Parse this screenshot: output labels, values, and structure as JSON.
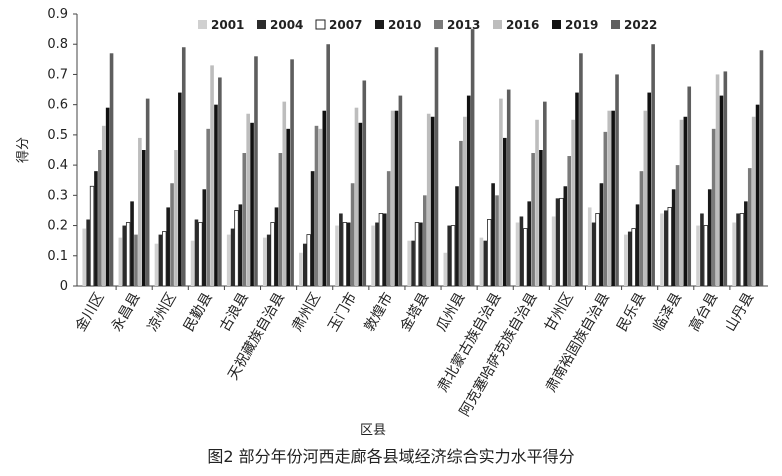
{
  "chart_data": {
    "type": "bar",
    "caption": "图2 部分年份河西走廊各县域经济综合实力水平得分",
    "xlabel": "区县",
    "ylabel": "得分",
    "ylim": [
      0,
      0.9
    ],
    "yticks": [
      "0",
      "0.1",
      "0.2",
      "0.3",
      "0.4",
      "0.5",
      "0.6",
      "0.7",
      "0.8",
      "0.9"
    ],
    "grid": false,
    "legend_position": "top",
    "categories": [
      "金川区",
      "永昌县",
      "凉州区",
      "民勤县",
      "古浪县",
      "天祝藏族自治县",
      "肃州区",
      "玉门市",
      "敦煌市",
      "金塔县",
      "瓜州县",
      "肃北蒙古族自治县",
      "阿克塞哈萨克族自治县",
      "甘州区",
      "肃南裕固族自治县",
      "民乐县",
      "临泽县",
      "高台县",
      "山丹县"
    ],
    "series": [
      {
        "name": "2001",
        "color": "#d0d0d0",
        "stroke": "none",
        "values": [
          0.19,
          0.16,
          0.14,
          0.15,
          0.17,
          0.16,
          0.11,
          0.2,
          0.2,
          0.15,
          0.11,
          0.16,
          0.21,
          0.23,
          0.26,
          0.17,
          0.24,
          0.2,
          0.21
        ]
      },
      {
        "name": "2004",
        "color": "#2b2b2b",
        "stroke": "none",
        "values": [
          0.22,
          0.2,
          0.17,
          0.22,
          0.19,
          0.17,
          0.14,
          0.24,
          0.21,
          0.15,
          0.2,
          0.15,
          0.23,
          0.29,
          0.21,
          0.18,
          0.25,
          0.24,
          0.24
        ]
      },
      {
        "name": "2007",
        "color": "#ffffff",
        "stroke": "#222222",
        "values": [
          0.33,
          0.21,
          0.18,
          0.21,
          0.25,
          0.21,
          0.17,
          0.21,
          0.24,
          0.21,
          0.2,
          0.22,
          0.19,
          0.29,
          0.24,
          0.19,
          0.26,
          0.2,
          0.24
        ]
      },
      {
        "name": "2010",
        "color": "#1a1a1a",
        "stroke": "none",
        "values": [
          0.38,
          0.28,
          0.26,
          0.32,
          0.27,
          0.26,
          0.38,
          0.21,
          0.24,
          0.21,
          0.33,
          0.34,
          0.28,
          0.33,
          0.34,
          0.27,
          0.32,
          0.32,
          0.28
        ]
      },
      {
        "name": "2013",
        "color": "#7a7a7a",
        "stroke": "none",
        "values": [
          0.45,
          0.17,
          0.34,
          0.52,
          0.44,
          0.44,
          0.53,
          0.34,
          0.38,
          0.3,
          0.48,
          0.3,
          0.44,
          0.43,
          0.51,
          0.38,
          0.4,
          0.52,
          0.39
        ]
      },
      {
        "name": "2016",
        "color": "#bdbdbd",
        "stroke": "none",
        "values": [
          0.53,
          0.49,
          0.45,
          0.73,
          0.57,
          0.61,
          0.52,
          0.59,
          0.58,
          0.57,
          0.56,
          0.62,
          0.55,
          0.55,
          0.58,
          0.58,
          0.55,
          0.7,
          0.56
        ]
      },
      {
        "name": "2019",
        "color": "#111111",
        "stroke": "none",
        "values": [
          0.59,
          0.45,
          0.64,
          0.6,
          0.54,
          0.52,
          0.58,
          0.54,
          0.58,
          0.56,
          0.63,
          0.49,
          0.45,
          0.64,
          0.58,
          0.64,
          0.56,
          0.63,
          0.6
        ]
      },
      {
        "name": "2022",
        "color": "#5e5e5e",
        "stroke": "none",
        "values": [
          0.77,
          0.62,
          0.79,
          0.69,
          0.76,
          0.75,
          0.8,
          0.68,
          0.63,
          0.79,
          0.85,
          0.65,
          0.61,
          0.77,
          0.7,
          0.8,
          0.66,
          0.71,
          0.78
        ]
      }
    ]
  }
}
